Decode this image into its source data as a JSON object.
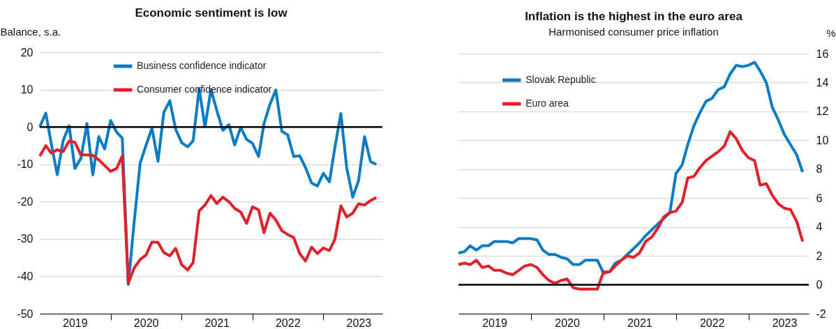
{
  "chart_data": [
    {
      "type": "line",
      "title": "Economic sentiment is low",
      "ylabel": "Balance, s.a.",
      "x": [
        "2019-01",
        "2019-02",
        "2019-03",
        "2019-04",
        "2019-05",
        "2019-06",
        "2019-07",
        "2019-08",
        "2019-09",
        "2019-10",
        "2019-11",
        "2019-12",
        "2020-01",
        "2020-02",
        "2020-03",
        "2020-04",
        "2020-05",
        "2020-06",
        "2020-07",
        "2020-08",
        "2020-09",
        "2020-10",
        "2020-11",
        "2020-12",
        "2021-01",
        "2021-02",
        "2021-03",
        "2021-04",
        "2021-05",
        "2021-06",
        "2021-07",
        "2021-08",
        "2021-09",
        "2021-10",
        "2021-11",
        "2021-12",
        "2022-01",
        "2022-02",
        "2022-03",
        "2022-04",
        "2022-05",
        "2022-06",
        "2022-07",
        "2022-08",
        "2022-09",
        "2022-10",
        "2022-11",
        "2022-12",
        "2023-01",
        "2023-02",
        "2023-03",
        "2023-04",
        "2023-05",
        "2023-06",
        "2023-07",
        "2023-08",
        "2023-09",
        "2023-10"
      ],
      "series": [
        {
          "name": "Business confidence indicator",
          "color": "#0a7cc1",
          "values": [
            0,
            3.7,
            -4.4,
            -12.8,
            -3.7,
            0.3,
            -11.1,
            -8.4,
            0.9,
            -12.8,
            -2.6,
            -5.9,
            1.7,
            -1.4,
            -3,
            -42.2,
            -25.6,
            -9.7,
            -5,
            -0.3,
            -9.2,
            3.9,
            7,
            -0.6,
            -4.2,
            -5.3,
            -3.7,
            10.3,
            0,
            10,
            4.4,
            -0.9,
            0.6,
            -4.8,
            -0.1,
            -3.3,
            -4.4,
            -7.9,
            0.9,
            6.1,
            9.9,
            -1.2,
            -2.1,
            -7.9,
            -7.7,
            -10.9,
            -15,
            -15.8,
            -12.4,
            -14.7,
            -5.6,
            3.6,
            -10.9,
            -18.8,
            -14.4,
            -2.6,
            -9.3,
            -10
          ]
        },
        {
          "name": "Consumer confidence indicator",
          "color": "#e0202a",
          "values": [
            -7.8,
            -5,
            -7,
            -6.1,
            -6.6,
            -3.8,
            -4.1,
            -7.5,
            -7.5,
            -7.6,
            -8.8,
            -10.3,
            -11.9,
            -11.1,
            -7.8,
            -41.9,
            -37.8,
            -35.5,
            -34.3,
            -30.8,
            -30.9,
            -33.6,
            -34.5,
            -32.5,
            -36.9,
            -38.3,
            -36.3,
            -22.5,
            -20.9,
            -18.4,
            -20.5,
            -18.8,
            -20,
            -21.8,
            -22.8,
            -25.8,
            -21.4,
            -22.2,
            -28.3,
            -23.1,
            -24.9,
            -27.8,
            -28.8,
            -29.6,
            -33.9,
            -35.9,
            -32.2,
            -33.9,
            -32.4,
            -33.1,
            -30.1,
            -21.1,
            -24.1,
            -23.1,
            -20.6,
            -20.9,
            -19.7,
            -18.9
          ]
        }
      ],
      "xlim": [
        "2019-01",
        "2023-11"
      ],
      "xticks": [
        {
          "value": "2019-07",
          "label": "2019"
        },
        {
          "value": "2020-01",
          "label": null
        },
        {
          "value": "2020-07",
          "label": "2020"
        },
        {
          "value": "2021-01",
          "label": null
        },
        {
          "value": "2021-07",
          "label": "2021"
        },
        {
          "value": "2022-01",
          "label": null
        },
        {
          "value": "2022-07",
          "label": "2022"
        },
        {
          "value": "2023-01",
          "label": null
        },
        {
          "value": "2023-07",
          "label": "2023"
        }
      ],
      "ylim": [
        -50,
        20
      ],
      "yticks": [
        -50,
        -40,
        -30,
        -20,
        -10,
        0,
        10,
        20
      ],
      "ref_lines": [
        {
          "axis": "y",
          "value": 0,
          "color": "#000000"
        }
      ],
      "grid": "y",
      "legend": "top"
    },
    {
      "type": "line",
      "title": "Inflation is the highest in the euro area",
      "subtitle": "Harmonised consumer price inflation",
      "y2label": "%",
      "x": [
        "2019-01",
        "2019-02",
        "2019-03",
        "2019-04",
        "2019-05",
        "2019-06",
        "2019-07",
        "2019-08",
        "2019-09",
        "2019-10",
        "2019-11",
        "2019-12",
        "2020-01",
        "2020-02",
        "2020-03",
        "2020-04",
        "2020-05",
        "2020-06",
        "2020-07",
        "2020-08",
        "2020-09",
        "2020-10",
        "2020-11",
        "2020-12",
        "2021-01",
        "2021-02",
        "2021-03",
        "2021-04",
        "2021-05",
        "2021-06",
        "2021-07",
        "2021-08",
        "2021-09",
        "2021-10",
        "2021-11",
        "2021-12",
        "2022-01",
        "2022-02",
        "2022-03",
        "2022-04",
        "2022-05",
        "2022-06",
        "2022-07",
        "2022-08",
        "2022-09",
        "2022-10",
        "2022-11",
        "2022-12",
        "2023-01",
        "2023-02",
        "2023-03",
        "2023-04",
        "2023-05",
        "2023-06",
        "2023-07",
        "2023-08",
        "2023-09",
        "2023-10"
      ],
      "series": [
        {
          "name": "Slovak Republic",
          "color": "#0a7cc1",
          "axis": "y2",
          "values": [
            2.2,
            2.3,
            2.7,
            2.4,
            2.7,
            2.7,
            3,
            3,
            3,
            2.9,
            3.2,
            3.2,
            3.2,
            3.1,
            2.4,
            2.1,
            2.1,
            1.9,
            1.8,
            1.4,
            1.4,
            1.7,
            1.7,
            1.7,
            0.8,
            0.9,
            1.5,
            1.7,
            2.1,
            2.5,
            2.9,
            3.4,
            3.8,
            4.2,
            4.6,
            5,
            7.7,
            8.3,
            9.7,
            11,
            11.9,
            12.7,
            12.9,
            13.5,
            13.7,
            14.6,
            15.2,
            15.1,
            15.2,
            15.4,
            14.8,
            14,
            12.3,
            11.4,
            10.4,
            9.7,
            9,
            7.8
          ]
        },
        {
          "name": "Euro area",
          "color": "#e0202a",
          "axis": "y2",
          "values": [
            1.4,
            1.5,
            1.4,
            1.7,
            1.2,
            1.3,
            1,
            1,
            0.8,
            0.7,
            1,
            1.3,
            1.4,
            1.2,
            0.7,
            0.3,
            0.1,
            0.3,
            0.4,
            -0.2,
            -0.3,
            -0.3,
            -0.3,
            -0.3,
            0.9,
            0.9,
            1.3,
            1.7,
            2,
            1.9,
            2.2,
            3,
            3.3,
            3.9,
            4.7,
            5,
            5.1,
            5.7,
            7.4,
            7.5,
            8.1,
            8.6,
            8.9,
            9.2,
            9.6,
            10.6,
            10.1,
            9.3,
            8.8,
            8.6,
            6.9,
            7,
            6.2,
            5.6,
            5.3,
            5.2,
            4.4,
            3
          ]
        }
      ],
      "xlim": [
        "2019-01",
        "2023-11"
      ],
      "xticks": [
        {
          "value": "2019-07",
          "label": "2019"
        },
        {
          "value": "2020-01",
          "label": null
        },
        {
          "value": "2020-07",
          "label": "2020"
        },
        {
          "value": "2021-01",
          "label": null
        },
        {
          "value": "2021-07",
          "label": "2021"
        },
        {
          "value": "2022-01",
          "label": null
        },
        {
          "value": "2022-07",
          "label": "2022"
        },
        {
          "value": "2023-01",
          "label": null
        },
        {
          "value": "2023-07",
          "label": "2023"
        }
      ],
      "y2lim": [
        -2,
        16
      ],
      "y2ticks": [
        -2,
        0,
        2,
        4,
        6,
        8,
        10,
        12,
        14,
        16
      ],
      "ref_lines": [
        {
          "axis": "y2",
          "value": 0,
          "color": "#000000"
        }
      ],
      "grid": "y",
      "legend": "top left"
    }
  ]
}
